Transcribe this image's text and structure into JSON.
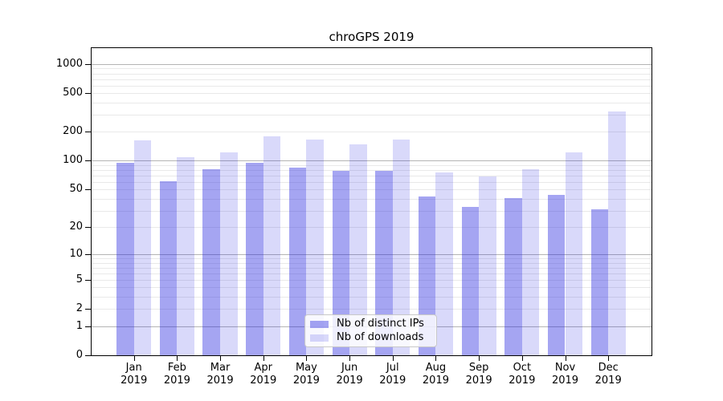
{
  "chart_data": {
    "type": "bar",
    "title": "chroGPS 2019",
    "categories": [
      "Jan",
      "Feb",
      "Mar",
      "Apr",
      "May",
      "Jun",
      "Jul",
      "Aug",
      "Sep",
      "Oct",
      "Nov",
      "Dec"
    ],
    "category_year": "2019",
    "series": [
      {
        "name": "Nb of distinct IPs",
        "color": "#1E1EDF66",
        "values": [
          95,
          61,
          82,
          95,
          85,
          78,
          79,
          42,
          33,
          41,
          44,
          31
        ]
      },
      {
        "name": "Nb of downloads",
        "color": "#1E1EDF2B",
        "values": [
          162,
          108,
          123,
          179,
          167,
          148,
          165,
          76,
          68,
          82,
          123,
          325
        ]
      }
    ],
    "y_axis": {
      "scale": "log1p",
      "ticks": [
        0,
        1,
        2,
        5,
        10,
        20,
        50,
        100,
        200,
        500,
        1000
      ],
      "tick_labels": [
        "0",
        "1",
        "2",
        "5",
        "10",
        "20",
        "50",
        "100",
        "200",
        "500",
        "1000"
      ],
      "ylim": [
        0,
        1460
      ]
    },
    "x_axis": {
      "label": ""
    },
    "grid": {
      "major_lines": [
        1,
        10,
        100,
        1000
      ],
      "major_color": "#b4b4b4",
      "minor_color": "#e9e9e9"
    },
    "legend": {
      "position": "inside-bottom-center"
    },
    "axis_color": "#000000",
    "background_color": "#ffffff"
  }
}
